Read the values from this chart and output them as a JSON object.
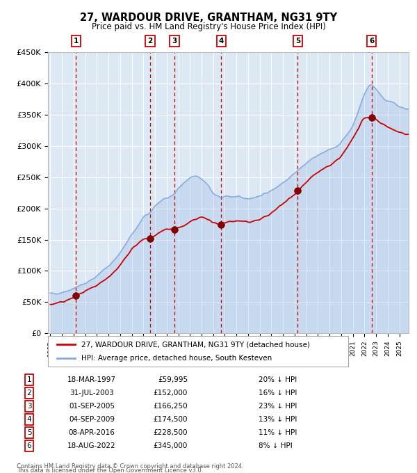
{
  "title": "27, WARDOUR DRIVE, GRANTHAM, NG31 9TY",
  "subtitle": "Price paid vs. HM Land Registry's House Price Index (HPI)",
  "ylim": [
    0,
    450000
  ],
  "yticks": [
    0,
    50000,
    100000,
    150000,
    200000,
    250000,
    300000,
    350000,
    400000,
    450000
  ],
  "ytick_labels": [
    "£0",
    "£50K",
    "£100K",
    "£150K",
    "£200K",
    "£250K",
    "£300K",
    "£350K",
    "£400K",
    "£450K"
  ],
  "xlim_start": 1994.8,
  "xlim_end": 2025.8,
  "plot_bg_color": "#dce9f5",
  "grid_color": "#ffffff",
  "sale_color": "#cc0000",
  "hpi_color": "#88aadd",
  "sale_marker_color": "#880000",
  "transactions": [
    {
      "num": 1,
      "date_str": "18-MAR-1997",
      "year": 1997.21,
      "price": 59995,
      "pct": "20%"
    },
    {
      "num": 2,
      "date_str": "31-JUL-2003",
      "year": 2003.58,
      "price": 152000,
      "pct": "16%"
    },
    {
      "num": 3,
      "date_str": "01-SEP-2005",
      "year": 2005.67,
      "price": 166250,
      "pct": "23%"
    },
    {
      "num": 4,
      "date_str": "04-SEP-2009",
      "year": 2009.68,
      "price": 174500,
      "pct": "13%"
    },
    {
      "num": 5,
      "date_str": "08-APR-2016",
      "year": 2016.27,
      "price": 228500,
      "pct": "11%"
    },
    {
      "num": 6,
      "date_str": "18-AUG-2022",
      "year": 2022.63,
      "price": 345000,
      "pct": "8%"
    }
  ],
  "legend_label_sale": "27, WARDOUR DRIVE, GRANTHAM, NG31 9TY (detached house)",
  "legend_label_hpi": "HPI: Average price, detached house, South Kesteven",
  "footer1": "Contains HM Land Registry data © Crown copyright and database right 2024.",
  "footer2": "This data is licensed under the Open Government Licence v3.0.",
  "hpi_keypoints_x": [
    1995.0,
    1996.0,
    1997.0,
    1998.0,
    1999.0,
    2000.0,
    2001.0,
    2002.0,
    2003.0,
    2003.58,
    2004.0,
    2005.0,
    2005.67,
    2006.0,
    2007.0,
    2007.5,
    2008.0,
    2008.5,
    2009.0,
    2009.5,
    2009.68,
    2010.0,
    2011.0,
    2012.0,
    2013.0,
    2014.0,
    2015.0,
    2016.0,
    2016.27,
    2017.0,
    2018.0,
    2019.0,
    2020.0,
    2021.0,
    2021.5,
    2022.0,
    2022.5,
    2022.63,
    2023.0,
    2023.5,
    2024.0,
    2024.5,
    2025.0,
    2025.8
  ],
  "hpi_keypoints_y": [
    63000,
    66000,
    72000,
    80000,
    92000,
    108000,
    128000,
    158000,
    185000,
    193000,
    205000,
    218000,
    222000,
    233000,
    248000,
    252000,
    248000,
    240000,
    222000,
    218000,
    216000,
    220000,
    218000,
    216000,
    220000,
    228000,
    242000,
    257000,
    260000,
    273000,
    285000,
    293000,
    305000,
    332000,
    356000,
    385000,
    400000,
    398000,
    392000,
    378000,
    372000,
    368000,
    362000,
    358000
  ],
  "sale_keypoints_x": [
    1995.0,
    1996.0,
    1997.0,
    1997.21,
    1998.0,
    1999.0,
    2000.0,
    2001.0,
    2002.0,
    2003.0,
    2003.58,
    2004.5,
    2005.0,
    2005.67,
    2006.5,
    2007.0,
    2007.5,
    2008.0,
    2008.5,
    2009.0,
    2009.68,
    2010.0,
    2011.0,
    2012.0,
    2013.0,
    2014.0,
    2015.0,
    2016.0,
    2016.27,
    2017.0,
    2018.0,
    2019.0,
    2020.0,
    2021.0,
    2022.0,
    2022.63,
    2023.0,
    2024.0,
    2025.0,
    2025.8
  ],
  "sale_keypoints_y": [
    46000,
    50000,
    57000,
    59995,
    67000,
    76000,
    90000,
    108000,
    136000,
    150000,
    152000,
    162000,
    168000,
    166250,
    172000,
    178000,
    182000,
    186000,
    184000,
    176000,
    174500,
    178000,
    180000,
    178000,
    182000,
    192000,
    208000,
    222000,
    228500,
    242000,
    258000,
    268000,
    282000,
    312000,
    345000,
    345000,
    342000,
    330000,
    322000,
    318000
  ]
}
